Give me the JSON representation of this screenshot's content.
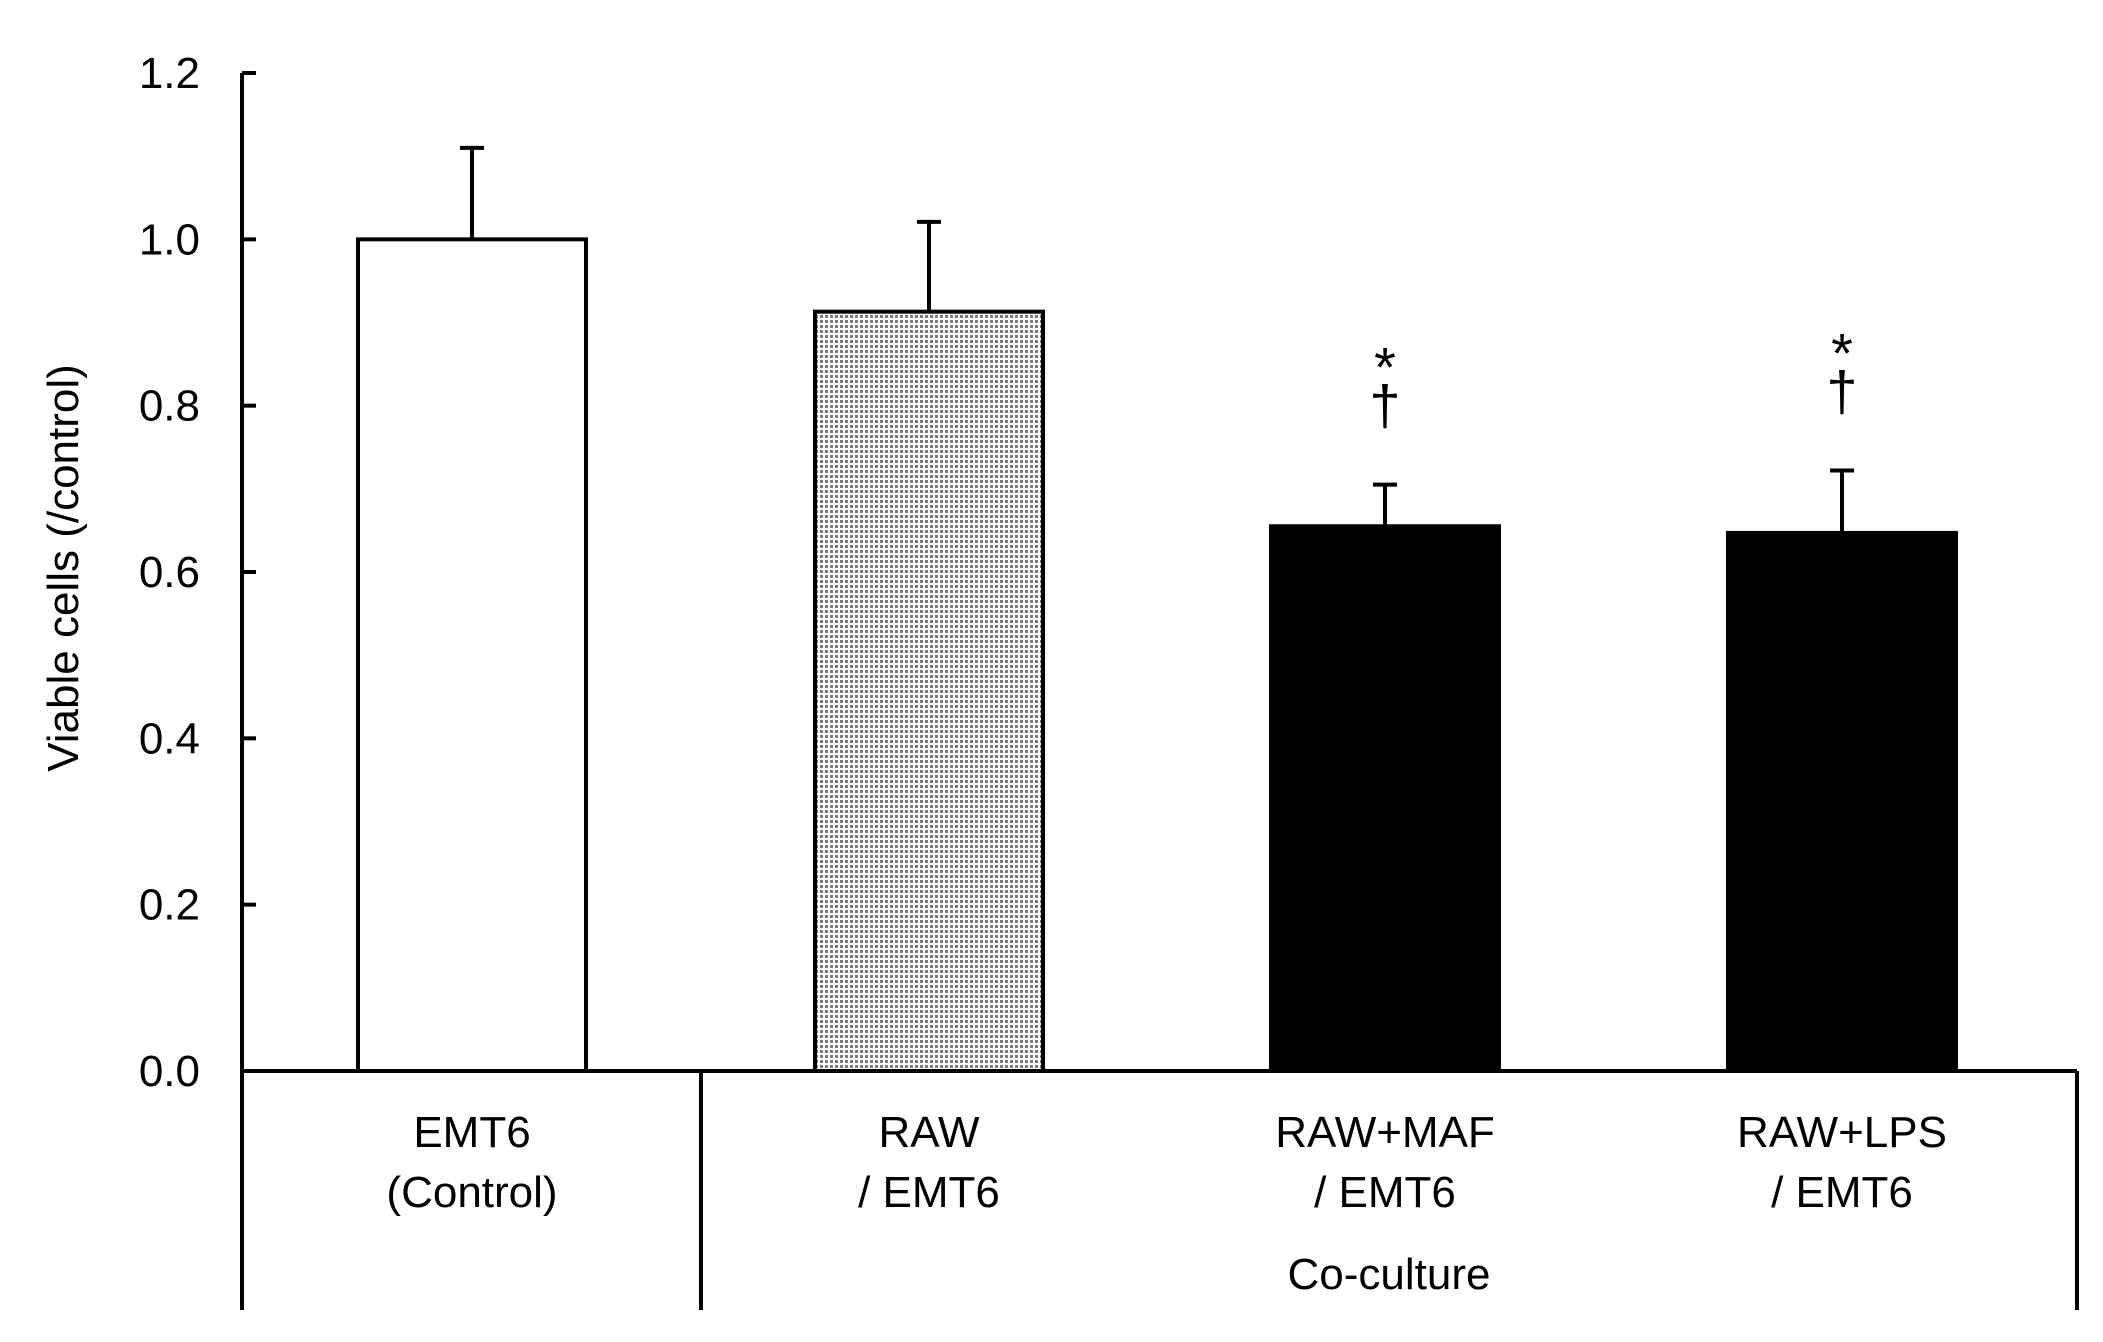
{
  "chart_data": {
    "type": "bar",
    "title": "",
    "ylabel": "Viable cells (/control)",
    "xlabel": "",
    "ylim": [
      0,
      1.2
    ],
    "yticks": [
      "0.0",
      "0.2",
      "0.4",
      "0.6",
      "0.8",
      "1.0",
      "1.2"
    ],
    "categories": [
      [
        "EMT6",
        "(Control)"
      ],
      [
        "RAW",
        "/ EMT6"
      ],
      [
        "RAW+MAF",
        "/ EMT6"
      ],
      [
        "RAW+LPS",
        "/ EMT6"
      ]
    ],
    "values": [
      1.0,
      0.913,
      0.655,
      0.647
    ],
    "errors": [
      0.11,
      0.108,
      0.05,
      0.075
    ],
    "bar_styles": [
      "white",
      "dotted",
      "black",
      "black"
    ],
    "significance": [
      [],
      [],
      [
        "*",
        "†"
      ],
      [
        "*",
        "†"
      ]
    ],
    "group_label": "Co-culture",
    "grid": false,
    "colors": {
      "ink": "#000000",
      "white": "#ffffff",
      "dotted": "#8c8c8c"
    }
  }
}
